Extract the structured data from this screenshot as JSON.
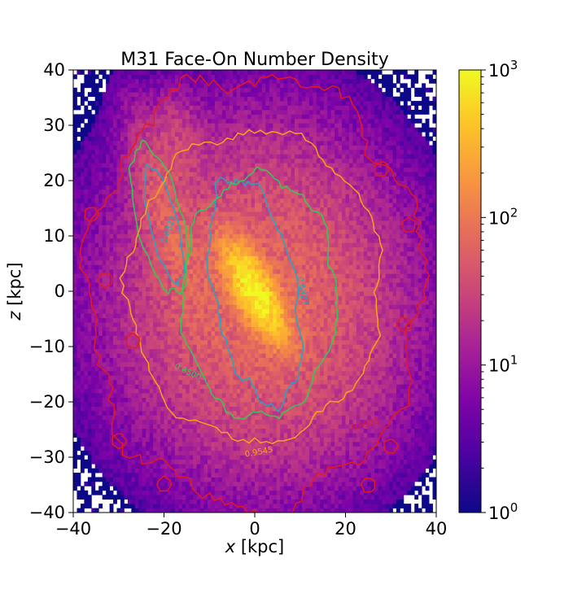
{
  "chart_data": {
    "type": "heatmap",
    "title": "M31 Face-On Number Density",
    "xlabel": "x [kpc]",
    "ylabel": "z [kpc]",
    "xlim": [
      -40,
      40
    ],
    "ylim": [
      -40,
      40
    ],
    "xticks": [
      -40,
      -20,
      0,
      20,
      40
    ],
    "yticks": [
      -40,
      -30,
      -20,
      -10,
      0,
      10,
      20,
      30,
      40
    ],
    "grid": false,
    "colorbar": {
      "scale": "log",
      "colormap": "plasma",
      "range": [
        1,
        1000
      ],
      "tick_exponents": [
        0,
        1,
        2,
        3
      ]
    },
    "contours": [
      {
        "label": "0.6827",
        "color": "#1fa6c8",
        "level": 0.6827
      },
      {
        "label": "0.8500",
        "color": "#2ecc55",
        "level": 0.85
      },
      {
        "label": "0.9545",
        "color": "#f5a31a",
        "level": 0.9545
      },
      {
        "label": "0.9973",
        "color": "#e41a1c",
        "level": 0.9973
      }
    ],
    "features": {
      "bulge_center": [
        0,
        0
      ],
      "bulge_peak_density": 1000,
      "bulge_orientation": "elongated from upper-left to lower-right",
      "disk_extent_kpc": 25,
      "northern_stream": "arm extending to upper-left, around x=-20, z=20 to 30",
      "halo_sparsity": "sparse scattered single-count pixels beyond ~25 kpc"
    }
  }
}
